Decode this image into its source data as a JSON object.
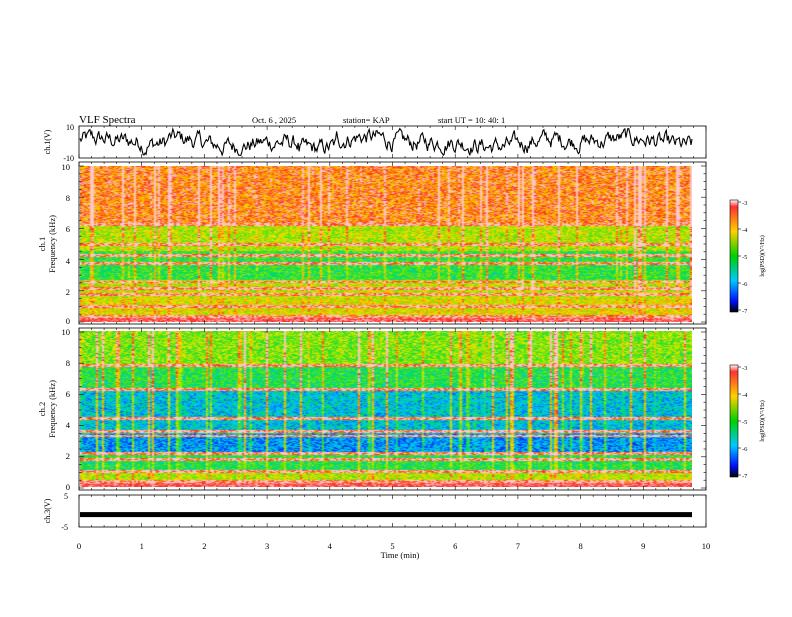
{
  "header": {
    "title": "VLF Spectra",
    "date": "Oct. 6 , 2025",
    "station": "station= KAP",
    "start_ut": "start UT =  10: 40: 1"
  },
  "chart_data": [
    {
      "type": "line",
      "name": "ch1-waveform",
      "ylabel": "ch.1(V)",
      "ylim": [
        -10,
        10
      ],
      "yticks": [
        "10",
        "-10"
      ],
      "xlim": [
        0,
        10
      ],
      "series_color": "#000000"
    },
    {
      "type": "heatmap",
      "name": "ch1-spectrogram",
      "ylabel_line1": "ch.1",
      "ylabel_line2": "Frequency (kHz)",
      "ylim": [
        0,
        10
      ],
      "yticks": [
        "0",
        "2",
        "4",
        "6",
        "8",
        "10"
      ],
      "xlim": [
        0,
        9.8
      ],
      "colorbar": {
        "label": "log(PSD)(V²/Hz)",
        "range": [
          -7,
          -3
        ],
        "ticks": [
          "-3",
          "-4",
          "-5",
          "-6",
          "-7"
        ]
      },
      "bands_khz": [
        0.4,
        1.0,
        1.8,
        2.2,
        2.6,
        3.8,
        4.3,
        5.0,
        6.3
      ]
    },
    {
      "type": "heatmap",
      "name": "ch2-spectrogram",
      "ylabel_line1": "ch.2",
      "ylabel_line2": "Frequency (kHz)",
      "ylim": [
        0,
        10
      ],
      "yticks": [
        "0",
        "2",
        "4",
        "6",
        "8",
        "10"
      ],
      "xlim": [
        0,
        9.8
      ],
      "colorbar": {
        "label": "log(PSD)(V²/Hz)",
        "range": [
          -7,
          -3
        ],
        "ticks": [
          "-3",
          "-4",
          "-5",
          "-6",
          "-7"
        ]
      },
      "bands_khz": [
        0.4,
        1.0,
        1.8,
        2.2,
        3.3,
        3.6,
        4.4,
        6.3,
        7.8
      ]
    },
    {
      "type": "line",
      "name": "ch3-waveform",
      "ylabel": "ch.3(V)",
      "ylim": [
        -5,
        5
      ],
      "yticks": [
        "5",
        "-5"
      ],
      "xlim": [
        0,
        10
      ],
      "value_level": -1.3,
      "xlabel": "Time (min)",
      "xticks": [
        "0",
        "1",
        "2",
        "3",
        "4",
        "5",
        "6",
        "7",
        "8",
        "9",
        "10"
      ]
    }
  ]
}
